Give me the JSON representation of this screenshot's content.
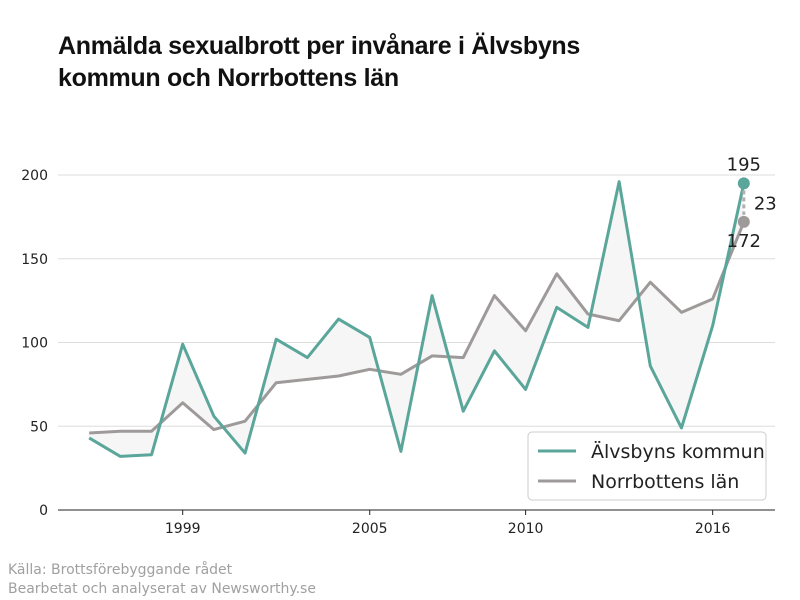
{
  "title_line1": "Anmälda sexualbrott per invånare i Älvsbyns",
  "title_line2": "kommun och Norrbottens län",
  "source_line1": "Källa: Brottsförebyggande rådet",
  "source_line2": "Bearbetat och analyserat av Newsworthy.se",
  "colors": {
    "alvsbyn": "#5ba69a",
    "norrbotten": "#9e9a9a",
    "fill": "#f6f6f6",
    "grid": "#dddddd",
    "axis": "#222222"
  },
  "chart_data": {
    "type": "line",
    "x": [
      1996,
      1997,
      1998,
      1999,
      2000,
      2001,
      2002,
      2003,
      2004,
      2005,
      2006,
      2007,
      2008,
      2009,
      2010,
      2011,
      2012,
      2013,
      2014,
      2015,
      2016,
      2017
    ],
    "xticks": [
      1999,
      2005,
      2010,
      2016
    ],
    "yticks": [
      0,
      50,
      100,
      150,
      200
    ],
    "ylim": [
      0,
      200
    ],
    "grid": true,
    "legend_position": "bottom-right",
    "series": [
      {
        "name": "Älvsbyns kommun",
        "color": "#5ba69a",
        "values": [
          43,
          32,
          33,
          99,
          56,
          34,
          102,
          91,
          114,
          103,
          35,
          128,
          59,
          95,
          72,
          121,
          109,
          196,
          86,
          49,
          110,
          195
        ]
      },
      {
        "name": "Norrbottens län",
        "color": "#9e9a9a",
        "values": [
          46,
          47,
          47,
          64,
          48,
          53,
          76,
          78,
          80,
          84,
          81,
          92,
          91,
          128,
          107,
          141,
          117,
          113,
          136,
          118,
          126,
          172
        ]
      }
    ],
    "annotations": {
      "alvsbyn_last": "195",
      "norrbotten_last": "172",
      "difference": "23"
    }
  }
}
